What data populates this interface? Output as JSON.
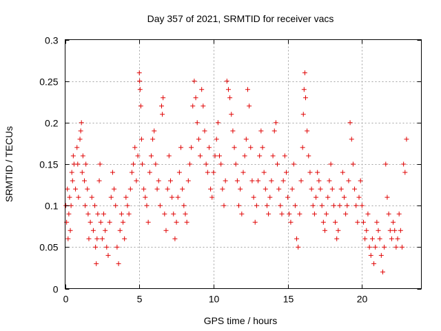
{
  "chart_data": {
    "type": "scatter",
    "title": "Day 357 of 2021, SRMTID for receiver vacs",
    "xlabel": "GPS time / hours",
    "ylabel": "SRMTID / TECUs",
    "xlim": [
      0,
      24
    ],
    "ylim": [
      0,
      0.3
    ],
    "xticks": [
      0,
      5,
      10,
      15,
      20
    ],
    "xtick_labels": [
      "0",
      "5",
      "10",
      "15",
      "20"
    ],
    "yticks": [
      0,
      0.05,
      0.1,
      0.15,
      0.2,
      0.25,
      0.3
    ],
    "ytick_labels": [
      "0",
      "0.05",
      "0.1",
      "0.15",
      "0.2",
      "0.25",
      "0.3"
    ],
    "grid": true,
    "marker": "+",
    "color": "#e00000",
    "series": [
      {
        "name": "SRMTID",
        "points": [
          [
            0.05,
            0.1
          ],
          [
            0.1,
            0.08
          ],
          [
            0.15,
            0.12
          ],
          [
            0.2,
            0.06
          ],
          [
            0.25,
            0.09
          ],
          [
            0.3,
            0.11
          ],
          [
            0.35,
            0.07
          ],
          [
            0.4,
            0.1
          ],
          [
            0.45,
            0.14
          ],
          [
            0.5,
            0.13
          ],
          [
            0.55,
            0.16
          ],
          [
            0.6,
            0.15
          ],
          [
            0.7,
            0.12
          ],
          [
            0.8,
            0.17
          ],
          [
            0.85,
            0.15
          ],
          [
            0.9,
            0.11
          ],
          [
            1.0,
            0.18
          ],
          [
            1.05,
            0.19
          ],
          [
            1.1,
            0.2
          ],
          [
            1.15,
            0.14
          ],
          [
            1.2,
            0.16
          ],
          [
            1.3,
            0.13
          ],
          [
            1.35,
            0.1
          ],
          [
            1.4,
            0.15
          ],
          [
            1.5,
            0.12
          ],
          [
            1.55,
            0.09
          ],
          [
            1.6,
            0.06
          ],
          [
            1.7,
            0.08
          ],
          [
            1.8,
            0.11
          ],
          [
            1.9,
            0.07
          ],
          [
            2.0,
            0.1
          ],
          [
            2.05,
            0.05
          ],
          [
            2.1,
            0.03
          ],
          [
            2.15,
            0.06
          ],
          [
            2.2,
            0.09
          ],
          [
            2.3,
            0.13
          ],
          [
            2.35,
            0.15
          ],
          [
            2.4,
            0.08
          ],
          [
            2.5,
            0.06
          ],
          [
            2.6,
            0.09
          ],
          [
            2.7,
            0.07
          ],
          [
            2.8,
            0.05
          ],
          [
            2.9,
            0.04
          ],
          [
            3.0,
            0.08
          ],
          [
            3.1,
            0.11
          ],
          [
            3.2,
            0.14
          ],
          [
            3.3,
            0.12
          ],
          [
            3.4,
            0.1
          ],
          [
            3.5,
            0.05
          ],
          [
            3.6,
            0.03
          ],
          [
            3.7,
            0.07
          ],
          [
            3.8,
            0.09
          ],
          [
            3.9,
            0.08
          ],
          [
            4.0,
            0.06
          ],
          [
            4.1,
            0.11
          ],
          [
            4.2,
            0.1
          ],
          [
            4.3,
            0.09
          ],
          [
            4.4,
            0.12
          ],
          [
            4.5,
            0.14
          ],
          [
            4.6,
            0.15
          ],
          [
            4.7,
            0.17
          ],
          [
            4.8,
            0.13
          ],
          [
            4.9,
            0.16
          ],
          [
            5.0,
            0.26
          ],
          [
            5.02,
            0.25
          ],
          [
            5.05,
            0.24
          ],
          [
            5.1,
            0.22
          ],
          [
            5.15,
            0.18
          ],
          [
            5.2,
            0.15
          ],
          [
            5.3,
            0.12
          ],
          [
            5.4,
            0.11
          ],
          [
            5.5,
            0.1
          ],
          [
            5.6,
            0.08
          ],
          [
            5.7,
            0.14
          ],
          [
            5.8,
            0.16
          ],
          [
            5.9,
            0.18
          ],
          [
            6.0,
            0.19
          ],
          [
            6.1,
            0.15
          ],
          [
            6.2,
            0.12
          ],
          [
            6.3,
            0.13
          ],
          [
            6.4,
            0.1
          ],
          [
            6.5,
            0.22
          ],
          [
            6.55,
            0.21
          ],
          [
            6.6,
            0.23
          ],
          [
            6.7,
            0.09
          ],
          [
            6.8,
            0.07
          ],
          [
            6.9,
            0.12
          ],
          [
            7.0,
            0.16
          ],
          [
            7.1,
            0.13
          ],
          [
            7.2,
            0.11
          ],
          [
            7.3,
            0.09
          ],
          [
            7.4,
            0.06
          ],
          [
            7.5,
            0.08
          ],
          [
            7.6,
            0.11
          ],
          [
            7.7,
            0.14
          ],
          [
            7.8,
            0.17
          ],
          [
            7.9,
            0.12
          ],
          [
            8.0,
            0.1
          ],
          [
            8.1,
            0.09
          ],
          [
            8.2,
            0.08
          ],
          [
            8.3,
            0.13
          ],
          [
            8.4,
            0.15
          ],
          [
            8.5,
            0.17
          ],
          [
            8.6,
            0.22
          ],
          [
            8.7,
            0.25
          ],
          [
            8.8,
            0.23
          ],
          [
            8.9,
            0.2
          ],
          [
            9.0,
            0.18
          ],
          [
            9.1,
            0.16
          ],
          [
            9.2,
            0.24
          ],
          [
            9.3,
            0.22
          ],
          [
            9.4,
            0.19
          ],
          [
            9.5,
            0.15
          ],
          [
            9.6,
            0.14
          ],
          [
            9.7,
            0.17
          ],
          [
            9.8,
            0.12
          ],
          [
            9.9,
            0.11
          ],
          [
            10.0,
            0.14
          ],
          [
            10.1,
            0.16
          ],
          [
            10.2,
            0.18
          ],
          [
            10.3,
            0.2
          ],
          [
            10.4,
            0.16
          ],
          [
            10.5,
            0.15
          ],
          [
            10.6,
            0.12
          ],
          [
            10.7,
            0.1
          ],
          [
            10.8,
            0.13
          ],
          [
            10.9,
            0.25
          ],
          [
            11.0,
            0.24
          ],
          [
            11.1,
            0.23
          ],
          [
            11.2,
            0.21
          ],
          [
            11.3,
            0.19
          ],
          [
            11.4,
            0.17
          ],
          [
            11.5,
            0.15
          ],
          [
            11.6,
            0.13
          ],
          [
            11.7,
            0.1
          ],
          [
            11.8,
            0.12
          ],
          [
            11.9,
            0.09
          ],
          [
            12.0,
            0.14
          ],
          [
            12.1,
            0.16
          ],
          [
            12.2,
            0.18
          ],
          [
            12.3,
            0.24
          ],
          [
            12.4,
            0.22
          ],
          [
            12.5,
            0.17
          ],
          [
            12.6,
            0.13
          ],
          [
            12.7,
            0.11
          ],
          [
            12.8,
            0.08
          ],
          [
            12.9,
            0.1
          ],
          [
            13.0,
            0.13
          ],
          [
            13.1,
            0.16
          ],
          [
            13.2,
            0.19
          ],
          [
            13.3,
            0.17
          ],
          [
            13.4,
            0.14
          ],
          [
            13.5,
            0.12
          ],
          [
            13.6,
            0.1
          ],
          [
            13.7,
            0.09
          ],
          [
            13.8,
            0.11
          ],
          [
            13.9,
            0.13
          ],
          [
            14.0,
            0.16
          ],
          [
            14.1,
            0.19
          ],
          [
            14.2,
            0.2
          ],
          [
            14.3,
            0.15
          ],
          [
            14.4,
            0.12
          ],
          [
            14.5,
            0.1
          ],
          [
            14.6,
            0.09
          ],
          [
            14.7,
            0.13
          ],
          [
            14.8,
            0.16
          ],
          [
            14.9,
            0.14
          ],
          [
            15.0,
            0.11
          ],
          [
            15.1,
            0.09
          ],
          [
            15.2,
            0.08
          ],
          [
            15.3,
            0.12
          ],
          [
            15.4,
            0.15
          ],
          [
            15.5,
            0.1
          ],
          [
            15.6,
            0.06
          ],
          [
            15.7,
            0.05
          ],
          [
            15.8,
            0.09
          ],
          [
            15.9,
            0.13
          ],
          [
            16.0,
            0.17
          ],
          [
            16.05,
            0.21
          ],
          [
            16.1,
            0.24
          ],
          [
            16.15,
            0.26
          ],
          [
            16.2,
            0.23
          ],
          [
            16.3,
            0.19
          ],
          [
            16.4,
            0.16
          ],
          [
            16.5,
            0.14
          ],
          [
            16.6,
            0.12
          ],
          [
            16.7,
            0.1
          ],
          [
            16.8,
            0.09
          ],
          [
            16.9,
            0.11
          ],
          [
            17.0,
            0.14
          ],
          [
            17.1,
            0.13
          ],
          [
            17.2,
            0.12
          ],
          [
            17.3,
            0.1
          ],
          [
            17.4,
            0.08
          ],
          [
            17.5,
            0.07
          ],
          [
            17.6,
            0.09
          ],
          [
            17.7,
            0.11
          ],
          [
            17.8,
            0.13
          ],
          [
            17.9,
            0.15
          ],
          [
            18.0,
            0.12
          ],
          [
            18.1,
            0.1
          ],
          [
            18.2,
            0.08
          ],
          [
            18.3,
            0.06
          ],
          [
            18.4,
            0.07
          ],
          [
            18.5,
            0.1
          ],
          [
            18.6,
            0.12
          ],
          [
            18.7,
            0.14
          ],
          [
            18.8,
            0.11
          ],
          [
            18.9,
            0.09
          ],
          [
            19.0,
            0.1
          ],
          [
            19.1,
            0.13
          ],
          [
            19.2,
            0.2
          ],
          [
            19.3,
            0.18
          ],
          [
            19.4,
            0.15
          ],
          [
            19.5,
            0.12
          ],
          [
            19.6,
            0.1
          ],
          [
            19.7,
            0.08
          ],
          [
            19.8,
            0.11
          ],
          [
            19.9,
            0.13
          ],
          [
            20.0,
            0.1
          ],
          [
            20.1,
            0.08
          ],
          [
            20.2,
            0.06
          ],
          [
            20.3,
            0.07
          ],
          [
            20.4,
            0.09
          ],
          [
            20.5,
            0.05
          ],
          [
            20.6,
            0.04
          ],
          [
            20.7,
            0.06
          ],
          [
            20.8,
            0.03
          ],
          [
            20.9,
            0.05
          ],
          [
            21.0,
            0.08
          ],
          [
            21.1,
            0.07
          ],
          [
            21.2,
            0.06
          ],
          [
            21.3,
            0.04
          ],
          [
            21.4,
            0.02
          ],
          [
            21.5,
            0.05
          ],
          [
            21.6,
            0.15
          ],
          [
            21.7,
            0.11
          ],
          [
            21.8,
            0.09
          ],
          [
            21.9,
            0.07
          ],
          [
            22.0,
            0.06
          ],
          [
            22.1,
            0.08
          ],
          [
            22.2,
            0.07
          ],
          [
            22.3,
            0.05
          ],
          [
            22.4,
            0.06
          ],
          [
            22.5,
            0.09
          ],
          [
            22.6,
            0.07
          ],
          [
            22.7,
            0.05
          ],
          [
            22.8,
            0.15
          ],
          [
            22.9,
            0.14
          ],
          [
            23.0,
            0.18
          ]
        ]
      }
    ]
  }
}
